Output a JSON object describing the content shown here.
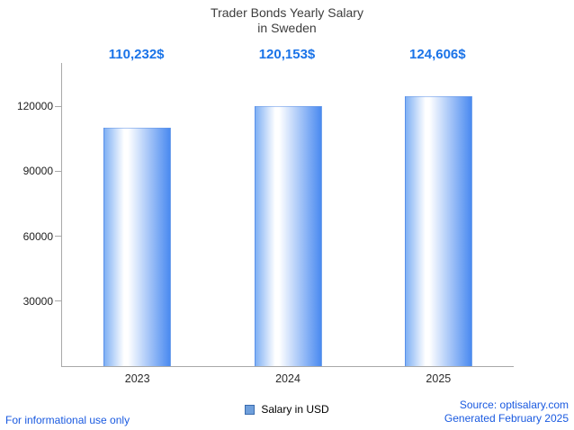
{
  "title": {
    "line1": "Trader Bonds Yearly Salary",
    "line2": "in Sweden"
  },
  "chart_data": {
    "type": "bar",
    "title": "Trader Bonds Yearly Salary in Sweden",
    "categories": [
      "2023",
      "2024",
      "2025"
    ],
    "values": [
      110232,
      120153,
      124606
    ],
    "value_labels": [
      "110,232$",
      "120,153$",
      "124,606$"
    ],
    "series_name": "Salary in USD",
    "xlabel": "",
    "ylabel": "",
    "ylim": [
      0,
      140000
    ],
    "yticks": [
      30000,
      60000,
      90000,
      120000
    ],
    "grid": false,
    "legend_position": "bottom",
    "bar_gradient": [
      "#7fb0f4",
      "#ffffff",
      "#4a8af0"
    ]
  },
  "legend": {
    "label": "Salary in USD",
    "swatch_color": "#6f9fdb"
  },
  "footer": {
    "disclaimer": "For informational use only",
    "source": "Source: optisalary.com",
    "generated": "Generated February 2025"
  },
  "colors": {
    "value_label": "#1a73e8",
    "footer_text": "#1a5ae0",
    "title_text": "#3d3d3d",
    "axis": "#a8a8a8"
  }
}
